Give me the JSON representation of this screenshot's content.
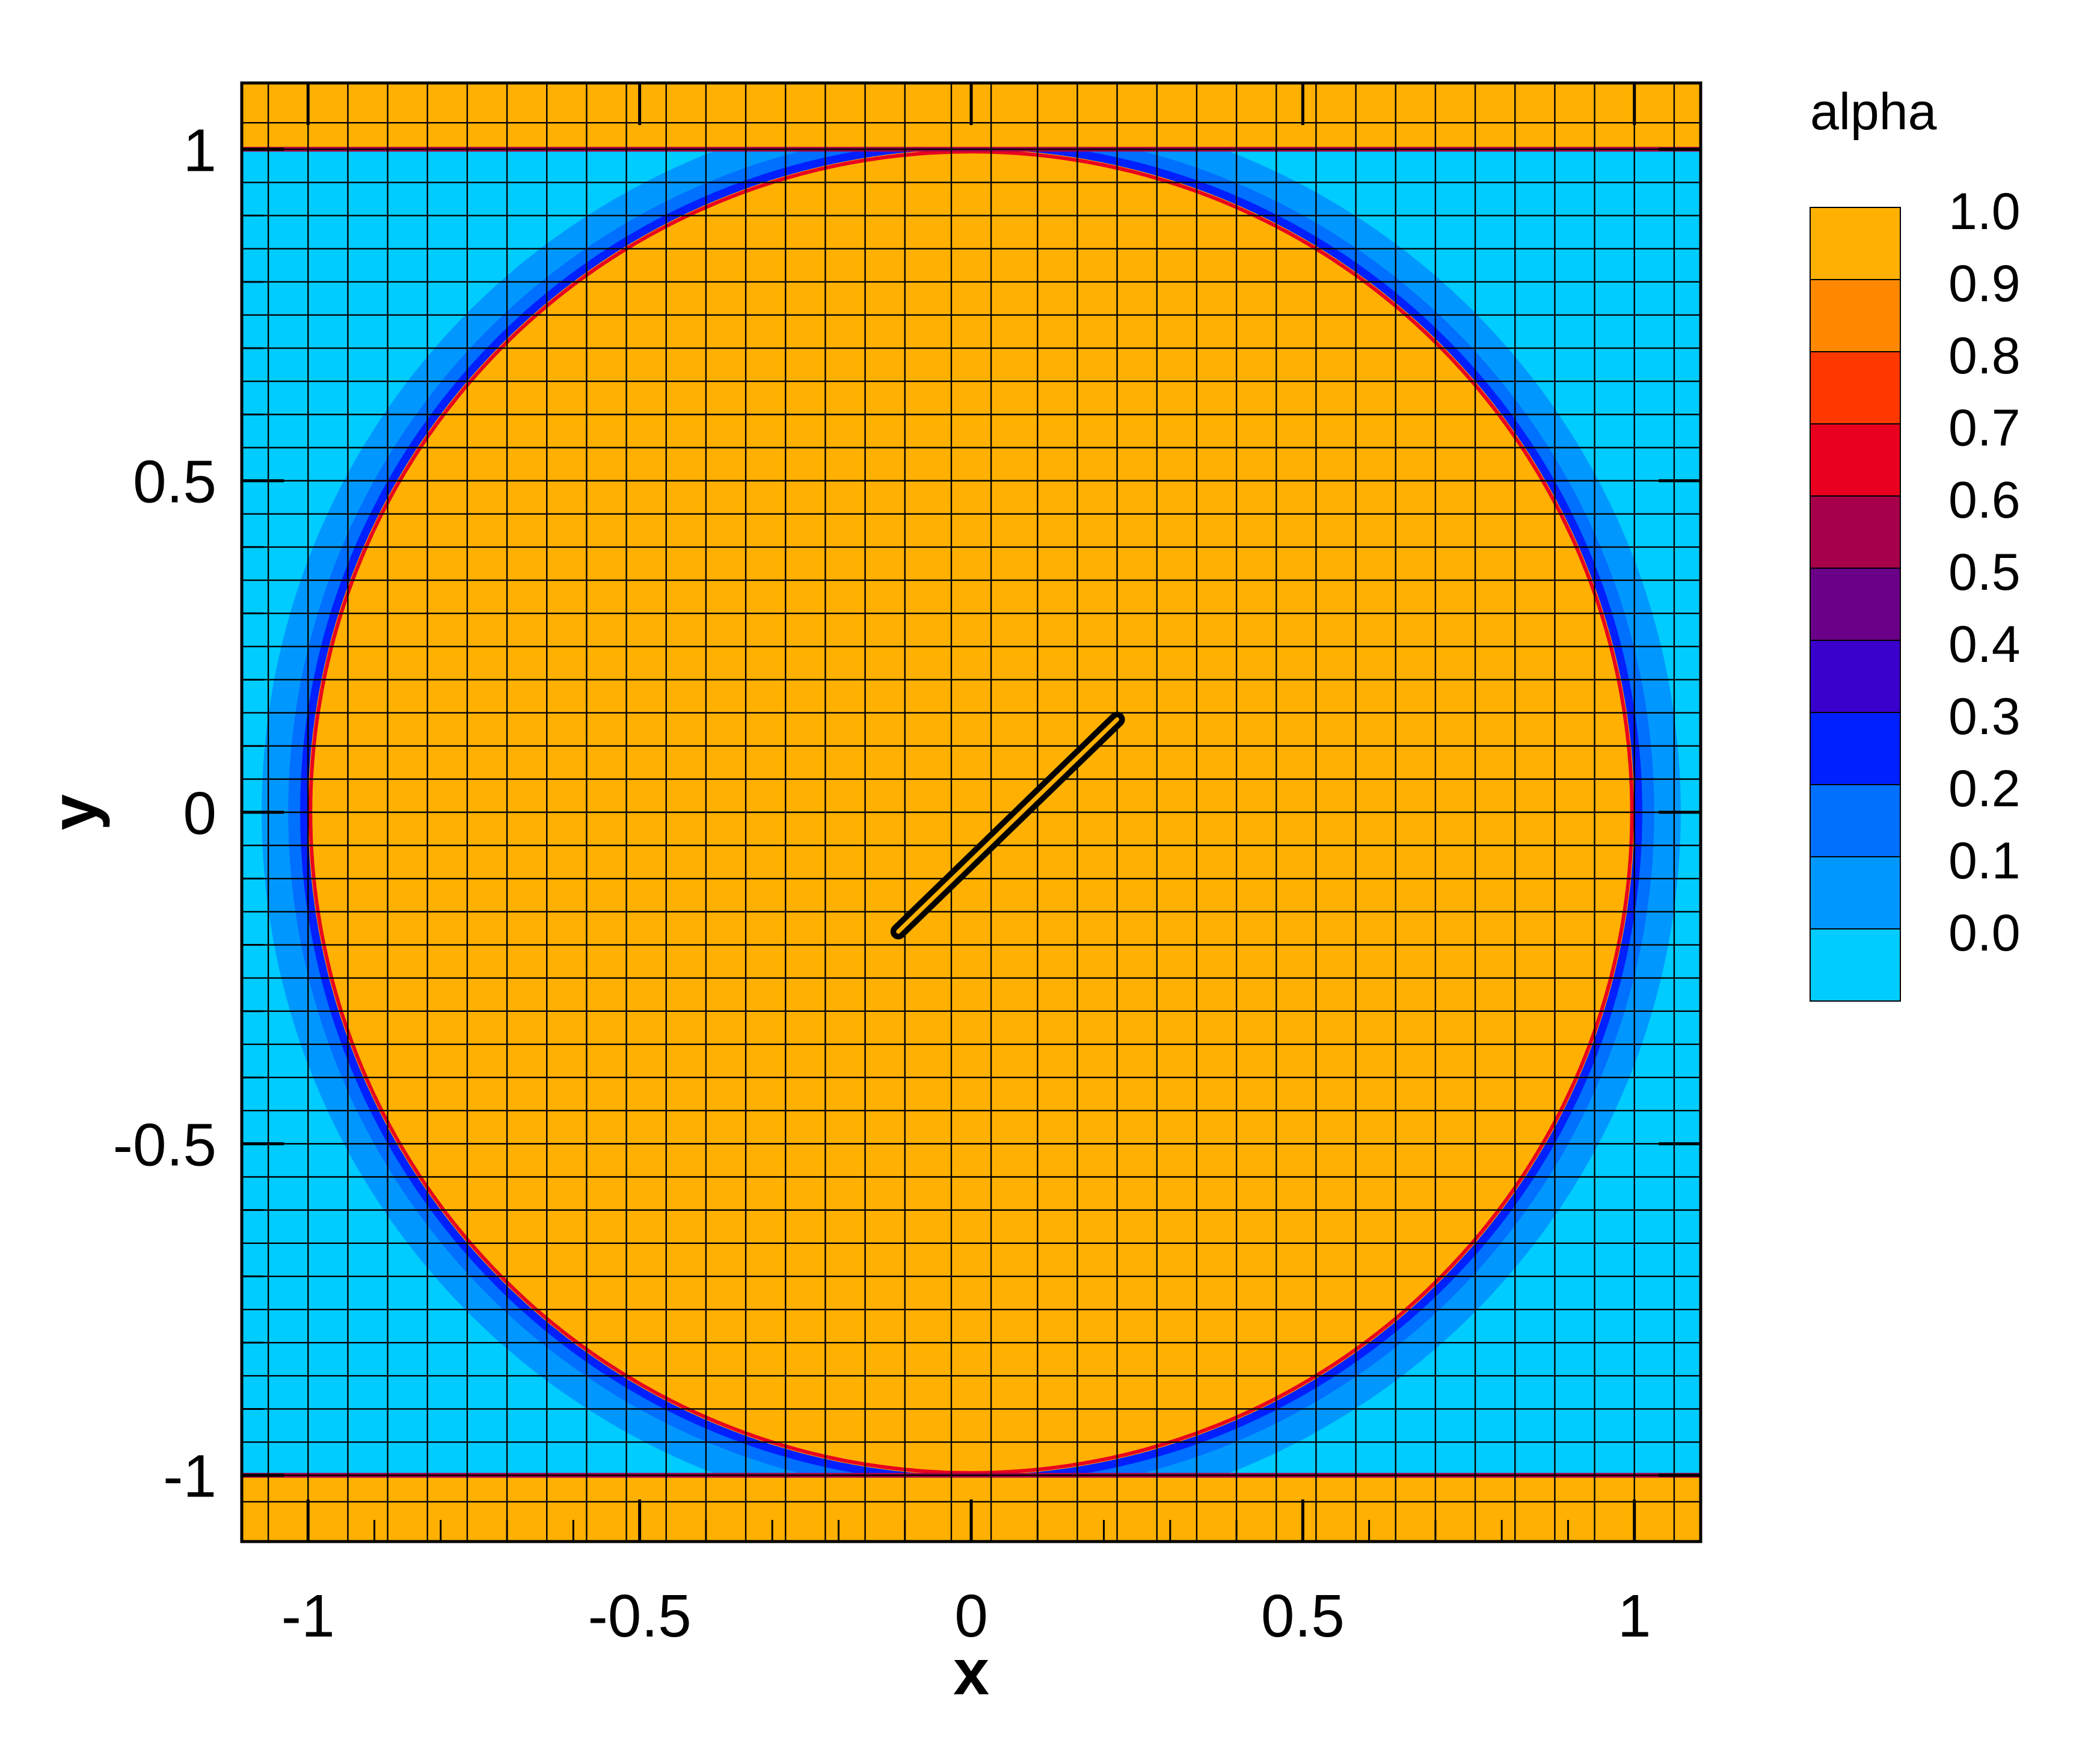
{
  "chart_data": {
    "type": "heatmap",
    "title": "",
    "xlabel": "x",
    "ylabel": "y",
    "xlim": [
      -1.1,
      1.1
    ],
    "ylim": [
      -1.1,
      1.1
    ],
    "x_ticks": [
      -1,
      -0.5,
      0,
      0.5,
      1
    ],
    "x_tick_labels": [
      "-1",
      "-0.5",
      "0",
      "0.5",
      "1"
    ],
    "y_ticks": [
      -1,
      -0.5,
      0,
      0.5,
      1
    ],
    "y_tick_labels": [
      "-1",
      "-0.5",
      "0",
      "0.5",
      "1"
    ],
    "grid": true,
    "grid_x": [
      -1.1,
      -1.06,
      -1.0,
      -0.94,
      -0.88,
      -0.82,
      -0.76,
      -0.7,
      -0.64,
      -0.58,
      -0.52,
      -0.46,
      -0.4,
      -0.34,
      -0.28,
      -0.22,
      -0.16,
      -0.1,
      -0.03,
      0.03,
      0.1,
      0.16,
      0.22,
      0.28,
      0.34,
      0.4,
      0.46,
      0.52,
      0.58,
      0.64,
      0.7,
      0.76,
      0.82,
      0.88,
      0.94,
      1.0,
      1.06,
      1.1
    ],
    "grid_y": [
      -1.1,
      -1.04,
      -1.0,
      -0.95,
      -0.9,
      -0.85,
      -0.8,
      -0.75,
      -0.7,
      -0.65,
      -0.6,
      -0.55,
      -0.5,
      -0.45,
      -0.4,
      -0.35,
      -0.3,
      -0.25,
      -0.2,
      -0.15,
      -0.1,
      -0.05,
      0.0,
      0.05,
      0.1,
      0.15,
      0.2,
      0.25,
      0.3,
      0.35,
      0.4,
      0.45,
      0.5,
      0.55,
      0.6,
      0.65,
      0.7,
      0.75,
      0.8,
      0.85,
      0.9,
      0.95,
      1.0,
      1.04,
      1.1
    ],
    "field": {
      "description_values": "alpha = 1.0 inside circle of radius 1.0 centred at origin and in bands |y|>1; alpha = 0.0 outside (corner regions); 0.1-0.4 in a thin transition ring",
      "circle_center": [
        0,
        0
      ],
      "circle_radius": 1.0,
      "outside_value": 0.0,
      "inside_value": 1.0,
      "transition_bands": [
        {
          "value": 0.3,
          "from_r": 1.0,
          "to_r": 1.012
        },
        {
          "value": 0.2,
          "from_r": 1.012,
          "to_r": 1.03
        },
        {
          "value": 0.1,
          "from_r": 1.03,
          "to_r": 1.07
        }
      ],
      "band_y_limit": 1.0
    },
    "line_segment": {
      "x": [
        -0.11,
        0.22
      ],
      "y": [
        -0.18,
        0.14
      ]
    },
    "legend": {
      "title": "alpha",
      "position": "right",
      "levels": [
        {
          "label": "1.0",
          "color": "#FFB000"
        },
        {
          "label": "0.9",
          "color": "#FF8800"
        },
        {
          "label": "0.8",
          "color": "#FF3800"
        },
        {
          "label": "0.7",
          "color": "#E8001E"
        },
        {
          "label": "0.6",
          "color": "#A6004A"
        },
        {
          "label": "0.5",
          "color": "#6A0088"
        },
        {
          "label": "0.4",
          "color": "#3A00CC"
        },
        {
          "label": "0.3",
          "color": "#0020FF"
        },
        {
          "label": "0.2",
          "color": "#0070FF"
        },
        {
          "label": "0.1",
          "color": "#0098FF"
        },
        {
          "label": "0.0",
          "color": "#00CCFF"
        }
      ]
    }
  }
}
